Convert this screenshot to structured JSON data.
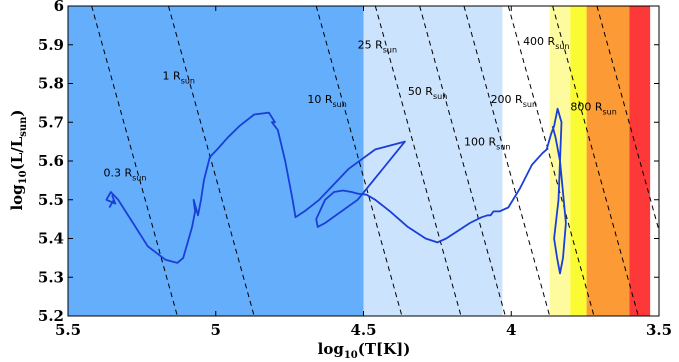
{
  "chart_data": {
    "type": "line",
    "xlabel": {
      "base": "log",
      "sub": "10",
      "rest": "(T[K])"
    },
    "ylabel": {
      "base": "log",
      "sub": "10",
      "mid": "(L/L",
      "sub2": "sun",
      "end": ")"
    },
    "xlim": [
      5.5,
      3.5
    ],
    "ylim": [
      5.2,
      6.0
    ],
    "xticks": [
      {
        "value": 5.5,
        "label": "5.5"
      },
      {
        "value": 5.0,
        "label": "5"
      },
      {
        "value": 4.5,
        "label": "4.5"
      },
      {
        "value": 4.0,
        "label": "4"
      },
      {
        "value": 3.5,
        "label": "3.5"
      }
    ],
    "yticks": [
      {
        "value": 5.2,
        "label": "5.2"
      },
      {
        "value": 5.3,
        "label": "5.3"
      },
      {
        "value": 5.4,
        "label": "5.4"
      },
      {
        "value": 5.5,
        "label": "5.5"
      },
      {
        "value": 5.6,
        "label": "5.6"
      },
      {
        "value": 5.7,
        "label": "5.7"
      },
      {
        "value": 5.8,
        "label": "5.8"
      },
      {
        "value": 5.9,
        "label": "5.9"
      },
      {
        "value": 6.0,
        "label": "6"
      }
    ],
    "bands": [
      {
        "x0": 5.5,
        "x1": 4.5,
        "color": "#64aefc"
      },
      {
        "x0": 4.5,
        "x1": 4.03,
        "color": "#cce3fd"
      },
      {
        "x0": 3.87,
        "x1": 3.8,
        "color": "#fdfb9e"
      },
      {
        "x0": 3.8,
        "x1": 3.745,
        "color": "#fbfb34"
      },
      {
        "x0": 3.745,
        "x1": 3.6,
        "color": "#fc9a35"
      },
      {
        "x0": 3.6,
        "x1": 3.53,
        "color": "#fc3838"
      }
    ],
    "radius_lines": [
      {
        "label": "0.3 R",
        "sub": "sun",
        "x_top": 5.42,
        "x_bottom": 5.13,
        "label_x": 5.38,
        "label_y": 5.56
      },
      {
        "label": "1 R",
        "sub": "sun",
        "x_top": 5.16,
        "x_bottom": 4.87,
        "label_x": 5.18,
        "label_y": 5.81
      },
      {
        "label": "10 R",
        "sub": "sun",
        "x_top": 4.66,
        "x_bottom": 4.37,
        "label_x": 4.69,
        "label_y": 5.75
      },
      {
        "label": "25 R",
        "sub": "sun",
        "x_top": 4.46,
        "x_bottom": 4.17,
        "label_x": 4.52,
        "label_y": 5.89
      },
      {
        "label": "50 R",
        "sub": "sun",
        "x_top": 4.31,
        "x_bottom": 4.02,
        "label_x": 4.35,
        "label_y": 5.77
      },
      {
        "label": "100 R",
        "sub": "sun",
        "x_top": 4.16,
        "x_bottom": 3.87,
        "label_x": 4.16,
        "label_y": 5.64
      },
      {
        "label": "200 R",
        "sub": "sun",
        "x_top": 4.01,
        "x_bottom": 3.72,
        "label_x": 4.07,
        "label_y": 5.75
      },
      {
        "label": "400 R",
        "sub": "sun",
        "x_top": 3.86,
        "x_bottom": 3.57,
        "label_x": 3.96,
        "label_y": 5.9
      },
      {
        "label": "800 R",
        "sub": "sun",
        "x_top": 3.71,
        "x_bottom": 3.42,
        "label_x": 3.8,
        "label_y": 5.73
      }
    ],
    "series": [
      {
        "color": "#1a3fd6",
        "x": [
          5.36,
          5.345,
          5.35,
          5.34,
          5.37,
          5.355,
          5.33,
          5.28,
          5.23,
          5.17,
          5.13,
          5.11,
          5.095,
          5.08,
          5.07,
          5.075,
          5.06,
          5.05,
          5.04,
          5.02,
          4.995,
          4.96,
          4.92,
          4.87,
          4.82,
          4.8,
          4.81,
          4.79,
          4.765,
          4.74,
          4.73,
          4.72,
          4.7,
          4.65,
          4.55,
          4.46,
          4.36,
          4.52,
          4.63,
          4.655,
          4.66,
          4.63,
          4.6,
          4.57,
          4.54,
          4.52,
          4.49,
          4.46,
          4.41,
          4.35,
          4.29,
          4.25,
          4.22,
          4.18,
          4.14,
          4.1,
          4.08,
          4.07,
          4.06,
          4.04,
          4.01,
          3.97,
          3.93,
          3.895,
          3.88,
          3.865,
          3.855,
          3.843,
          3.83,
          3.84,
          3.855,
          3.845,
          3.835,
          3.825,
          3.815,
          3.835,
          3.85,
          3.86
        ],
        "y": [
          5.48,
          5.5,
          5.51,
          5.49,
          5.5,
          5.52,
          5.5,
          5.44,
          5.38,
          5.345,
          5.337,
          5.35,
          5.39,
          5.43,
          5.47,
          5.5,
          5.46,
          5.5,
          5.55,
          5.61,
          5.63,
          5.66,
          5.69,
          5.72,
          5.725,
          5.7,
          5.7,
          5.68,
          5.6,
          5.5,
          5.455,
          5.46,
          5.47,
          5.5,
          5.58,
          5.63,
          5.65,
          5.5,
          5.44,
          5.43,
          5.45,
          5.5,
          5.52,
          5.524,
          5.52,
          5.516,
          5.513,
          5.5,
          5.47,
          5.43,
          5.4,
          5.39,
          5.4,
          5.42,
          5.44,
          5.455,
          5.46,
          5.46,
          5.47,
          5.47,
          5.48,
          5.53,
          5.59,
          5.62,
          5.63,
          5.67,
          5.69,
          5.735,
          5.7,
          5.5,
          5.4,
          5.35,
          5.31,
          5.35,
          5.44,
          5.6,
          5.66,
          5.69
        ]
      }
    ]
  }
}
